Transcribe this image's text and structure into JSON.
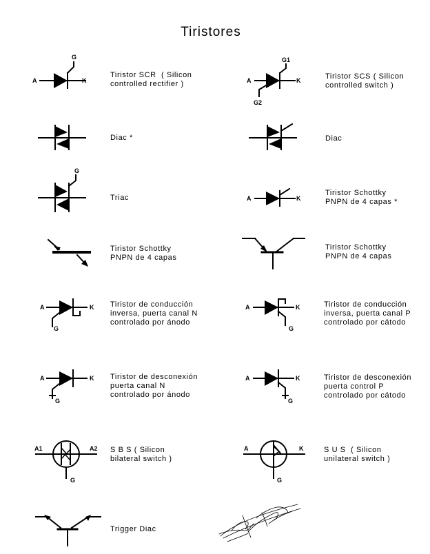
{
  "title": "Tiristores",
  "colors": {
    "ink": "#000000",
    "background": "#ffffff"
  },
  "items": [
    {
      "icon": "scr-symbol-icon",
      "label": "Tiristor SCR  ( Silicon\ncontrolled rectifier )",
      "pins": [
        "A",
        "K",
        "G"
      ]
    },
    {
      "icon": "scs-symbol-icon",
      "label": "Tiristor SCS ( Silicon\ncontrolled switch )",
      "pins": [
        "A",
        "K",
        "G1",
        "G2"
      ]
    },
    {
      "icon": "diac-symbol-icon",
      "label": "Diac *",
      "pins": []
    },
    {
      "icon": "diac-alt-symbol-icon",
      "label": "Diac",
      "pins": []
    },
    {
      "icon": "triac-symbol-icon",
      "label": "Triac",
      "pins": [
        "G"
      ]
    },
    {
      "icon": "schottky-4layer-diode-icon",
      "label": "Tiristor Schottky\nPNPN de 4 capas *",
      "pins": [
        "A",
        "K"
      ]
    },
    {
      "icon": "schottky-4layer-bar-icon",
      "label": "Tiristor Schottky\nPNPN de 4 capas",
      "pins": []
    },
    {
      "icon": "schottky-4layer-transistor-icon",
      "label": "Tiristor Schottky\nPNPN de 4 capas",
      "pins": []
    },
    {
      "icon": "rct-anode-gate-icon",
      "label": "Tiristor de conducción\ninversa, puerta canal N\ncontrolado por ánodo",
      "pins": [
        "A",
        "K",
        "G"
      ]
    },
    {
      "icon": "rct-cathode-gate-icon",
      "label": "Tiristor de conducción\ninversa, puerta canal P\ncontrolado por cátodo",
      "pins": [
        "A",
        "K",
        "G"
      ]
    },
    {
      "icon": "gto-anode-gate-icon",
      "label": "Tiristor de desconexión\npuerta canal N\ncontrolado por ánodo",
      "pins": [
        "A",
        "K",
        "G"
      ]
    },
    {
      "icon": "gto-cathode-gate-icon",
      "label": "Tiristor de desconexión\npuerta control P\ncontrolado por cátodo",
      "pins": [
        "A",
        "K",
        "G"
      ]
    },
    {
      "icon": "sbs-symbol-icon",
      "label": "S B S ( Silicon\nbilateral switch )",
      "pins": [
        "A1",
        "A2",
        "G"
      ]
    },
    {
      "icon": "sus-symbol-icon",
      "label": "S U S  ( Silicon\nunilateral switch )",
      "pins": [
        "A",
        "K",
        "G"
      ]
    },
    {
      "icon": "trigger-diac-symbol-icon",
      "label": "Trigger Diac",
      "pins": []
    }
  ]
}
